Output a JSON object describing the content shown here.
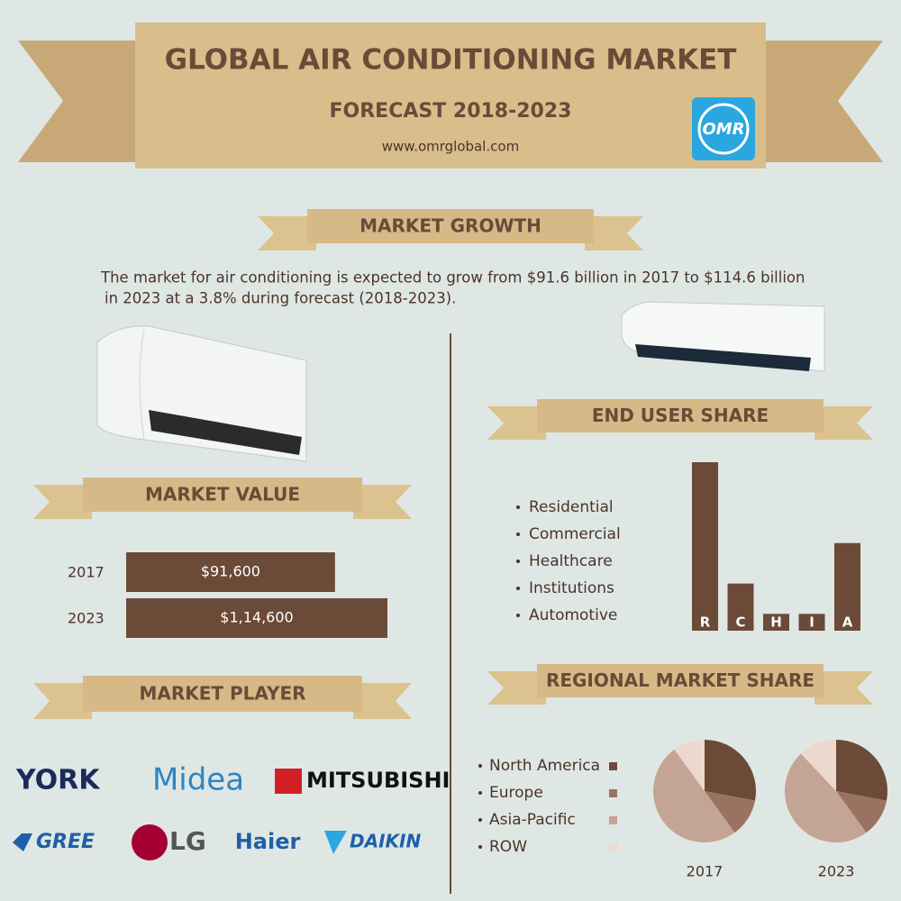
{
  "header": {
    "title": "GLOBAL AIR CONDITIONING MARKET",
    "subtitle": "FORECAST 2018-2023",
    "url": "www.omrglobal.com",
    "logo": "OMR"
  },
  "market_growth": {
    "heading": "MARKET GROWTH",
    "text": [
      "The market for air conditioning is expected to grow from $91.6 billion in 2017 to $114.6 billion",
      "in 2023 at a 3.8% during forecast (2018-2023)."
    ]
  },
  "market_player": {
    "heading": "MARKET PLAYER",
    "players": [
      "YORK",
      "Midea",
      "MITSUBISHI",
      "GREE",
      "LG",
      "Haier",
      "DAIKIN"
    ]
  },
  "chart_data": [
    {
      "type": "hbar",
      "title": "MARKET VALUE",
      "categories": [
        "2017",
        "2023"
      ],
      "values": [
        91600,
        114600
      ],
      "value_labels": [
        "$91,600",
        "$1,14,600"
      ],
      "color": "#6b4a38"
    },
    {
      "type": "bar",
      "title": "END USER SHARE",
      "categories": [
        "Residential",
        "Commercial",
        "Healthcare",
        "Institutions",
        "Automotive"
      ],
      "bar_labels": [
        "R",
        "C",
        "H",
        "I",
        "A"
      ],
      "values": [
        50,
        14,
        5,
        5,
        26
      ],
      "color": "#6b4a38"
    },
    {
      "type": "pie",
      "title": "REGIONAL MARKET SHARE",
      "label": "2017",
      "categories": [
        "North America",
        "Europe",
        "Asia-Pacific",
        "ROW"
      ],
      "values": [
        28,
        12,
        50,
        10
      ],
      "colors": [
        "#6b4a38",
        "#9b7260",
        "#c4a494",
        "#ecd8cc"
      ]
    },
    {
      "type": "pie",
      "label": "2023",
      "categories": [
        "North America",
        "Europe",
        "Asia-Pacific",
        "ROW"
      ],
      "values": [
        28,
        12,
        48,
        12
      ],
      "colors": [
        "#6b4a38",
        "#9b7260",
        "#c4a494",
        "#ecd8cc"
      ]
    }
  ]
}
